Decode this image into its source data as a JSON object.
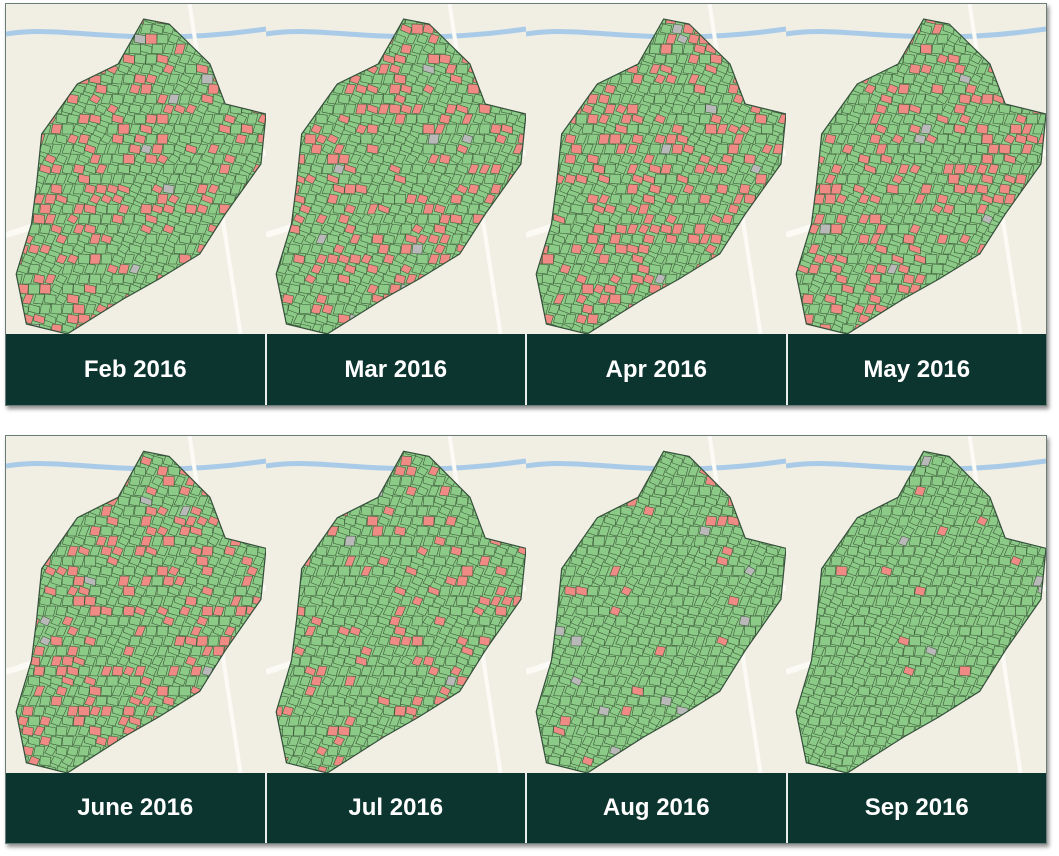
{
  "panels": [
    {
      "labels": [
        "Feb 2016",
        "Mar 2016",
        "Apr 2016",
        "May 2016"
      ]
    },
    {
      "labels": [
        "June 2016",
        "Jul 2016",
        "Aug 2016",
        "Sep 2016"
      ]
    }
  ]
}
